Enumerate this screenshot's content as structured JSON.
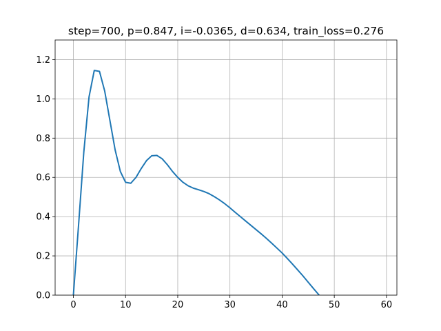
{
  "chart_data": {
    "type": "line",
    "title": "step=700, p=0.847, i=-0.0365, d=0.634, train_loss=0.276",
    "xlabel": "",
    "ylabel": "",
    "xlim": [
      -3.5,
      62
    ],
    "ylim": [
      0,
      1.3
    ],
    "grid": true,
    "xticks": [
      0,
      10,
      20,
      30,
      40,
      50,
      60
    ],
    "yticks": [
      0.0,
      0.2,
      0.4,
      0.6,
      0.8,
      1.0,
      1.2
    ],
    "xtick_labels": [
      "0",
      "10",
      "20",
      "30",
      "40",
      "50",
      "60"
    ],
    "ytick_labels": [
      "0.0",
      "0.2",
      "0.4",
      "0.6",
      "0.8",
      "1.0",
      "1.2"
    ],
    "series": [
      {
        "color": "#1f77b4",
        "x": [
          0,
          1,
          2,
          3,
          4,
          5,
          6,
          7,
          8,
          9,
          10,
          11,
          12,
          13,
          14,
          15,
          16,
          17,
          18,
          19,
          20,
          21,
          22,
          23,
          24,
          25,
          26,
          27,
          28,
          29,
          30,
          31,
          32,
          33,
          34,
          35,
          36,
          37,
          38,
          39,
          40,
          41,
          42,
          43,
          44,
          45,
          46,
          47,
          48
        ],
        "y": [
          0.0,
          0.36,
          0.73,
          1.01,
          1.145,
          1.14,
          1.04,
          0.89,
          0.74,
          0.63,
          0.575,
          0.57,
          0.6,
          0.645,
          0.685,
          0.71,
          0.712,
          0.695,
          0.665,
          0.63,
          0.6,
          0.575,
          0.557,
          0.545,
          0.537,
          0.528,
          0.517,
          0.502,
          0.485,
          0.466,
          0.445,
          0.422,
          0.4,
          0.378,
          0.356,
          0.334,
          0.312,
          0.289,
          0.265,
          0.24,
          0.215,
          0.187,
          0.158,
          0.128,
          0.098,
          0.066,
          0.034,
          0.003,
          -0.03
        ]
      }
    ]
  }
}
